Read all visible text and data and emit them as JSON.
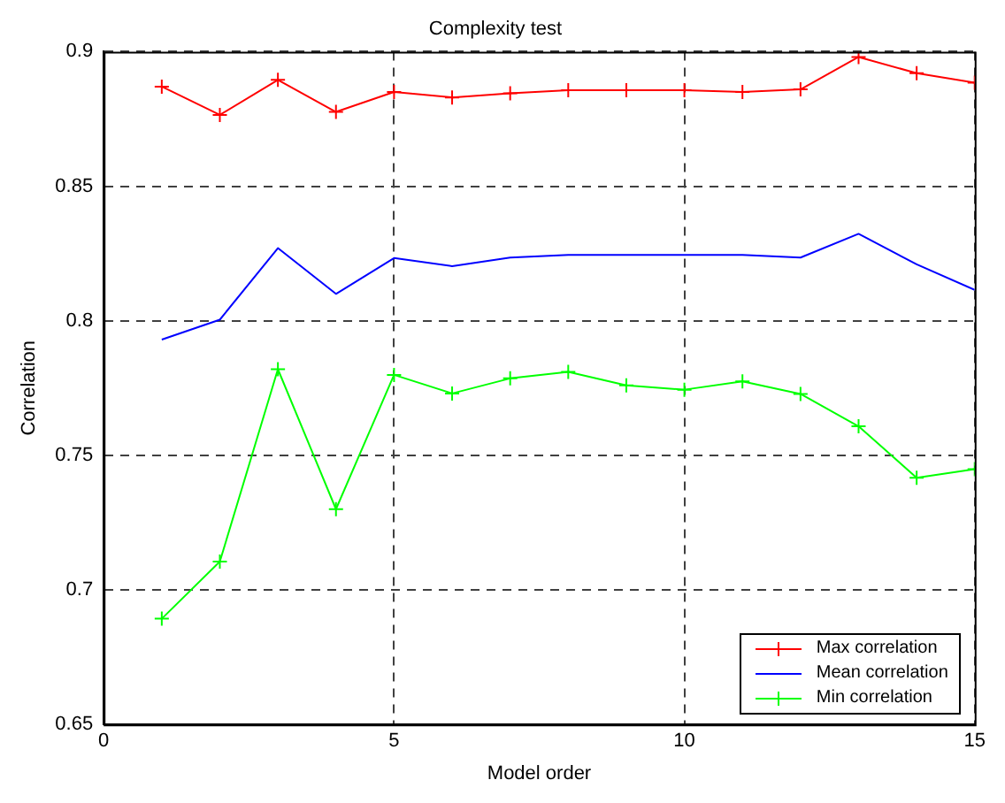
{
  "chart_data": {
    "type": "line",
    "title": "Complexity test",
    "xlabel": "Model order",
    "ylabel": "Correlation",
    "x": [
      1,
      2,
      3,
      4,
      5,
      6,
      7,
      8,
      9,
      10,
      11,
      12,
      13,
      14,
      15
    ],
    "xlim": [
      0,
      15
    ],
    "xticks": [
      0,
      5,
      10,
      15
    ],
    "ylim": [
      0.65,
      0.9
    ],
    "yticks": [
      0.65,
      0.7,
      0.75,
      0.8,
      0.85,
      0.9
    ],
    "grid": true,
    "legend": "bottom right",
    "series": [
      {
        "name": "Max correlation",
        "color": "#ff0000",
        "marker": "cross",
        "values": [
          0.887,
          0.8765,
          0.8895,
          0.8776,
          0.885,
          0.883,
          0.8845,
          0.8857,
          0.8857,
          0.8857,
          0.885,
          0.886,
          0.898,
          0.892,
          0.8885
        ]
      },
      {
        "name": "Mean correlation",
        "color": "#0000ff",
        "marker": "none",
        "values": [
          0.793,
          0.8004,
          0.827,
          0.81,
          0.8233,
          0.8203,
          0.8235,
          0.8245,
          0.8245,
          0.8245,
          0.8245,
          0.8235,
          0.8323,
          0.821,
          0.8115
        ]
      },
      {
        "name": "Min correlation",
        "color": "#00ff00",
        "marker": "cross",
        "values": [
          0.6893,
          0.7105,
          0.782,
          0.73,
          0.7799,
          0.773,
          0.7786,
          0.781,
          0.776,
          0.7744,
          0.7775,
          0.7728,
          0.7608,
          0.7417,
          0.7449
        ]
      }
    ]
  }
}
